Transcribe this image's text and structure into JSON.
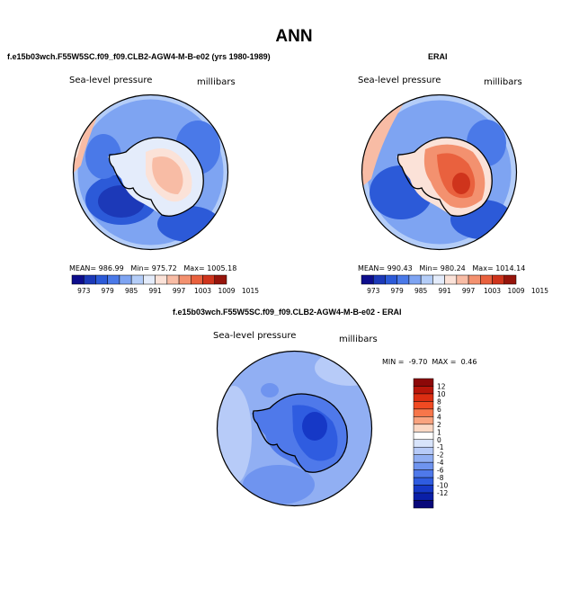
{
  "page_title": "ANN",
  "panels": {
    "model": {
      "title": "f.e15b03wch.F55W5SC.f09_f09.CLB2-AGW4-M-B-e02 (yrs 1980-1989)",
      "variable": "Sea-level pressure",
      "units": "millibars",
      "stats": {
        "mean_label": "MEAN=",
        "mean": "986.99",
        "min_label": "Min=",
        "min": "975.72",
        "max_label": "Max=",
        "max": "1005.18"
      }
    },
    "obs": {
      "title": "ERAI",
      "variable": "Sea-level pressure",
      "units": "millibars",
      "stats": {
        "mean_label": "MEAN=",
        "mean": "990.43",
        "min_label": "Min=",
        "min": "980.24",
        "max_label": "Max=",
        "max": "1014.14"
      }
    },
    "diff": {
      "title": "f.e15b03wch.F55W5SC.f09_f09.CLB2-AGW4-M-B-e02 - ERAI",
      "variable": "Sea-level pressure",
      "units": "millibars",
      "stats": {
        "min_label": "MIN =",
        "min": "-9.70",
        "max_label": "MAX =",
        "max": "0.46"
      }
    }
  },
  "colors": {
    "abs_scale": [
      "#0d0d8c",
      "#1c39b8",
      "#2c5ad8",
      "#4a79e8",
      "#7ea4f2",
      "#b4cdf8",
      "#e4ecfb",
      "#fbe2d8",
      "#f8bca5",
      "#f3916f",
      "#e9613e",
      "#cf341c",
      "#96140b"
    ],
    "diff_scale": [
      "#8c0808",
      "#b8160a",
      "#dc2e12",
      "#f04a22",
      "#f7764a",
      "#f9a37f",
      "#fbd8c4",
      "#ffffff",
      "#d8e4fb",
      "#b7cbf8",
      "#91aff3",
      "#6f94ef",
      "#4f79ea",
      "#2f5ce0",
      "#1638c6",
      "#0a1fa8",
      "#08087a"
    ]
  },
  "chart_data": [
    {
      "type": "contour-map",
      "projection": "south polar stereographic",
      "title": "f.e15b03wch.F55W5SC.f09_f09.CLB2-AGW4-M-B-e02 (yrs 1980-1989)",
      "field": "Sea-level pressure",
      "units": "millibars",
      "mean": 986.99,
      "min": 975.72,
      "max": 1005.18,
      "colorbar_levels": [
        "973",
        "979",
        "985",
        "991",
        "997",
        "1003",
        "1009",
        "1015"
      ]
    },
    {
      "type": "contour-map",
      "projection": "south polar stereographic",
      "title": "ERAI",
      "field": "Sea-level pressure",
      "units": "millibars",
      "mean": 990.43,
      "min": 980.24,
      "max": 1014.14,
      "colorbar_levels": [
        "973",
        "979",
        "985",
        "991",
        "997",
        "1003",
        "1009",
        "1015"
      ]
    },
    {
      "type": "contour-map",
      "projection": "south polar stereographic",
      "title": "f.e15b03wch.F55W5SC.f09_f09.CLB2-AGW4-M-B-e02 - ERAI",
      "field": "Sea-level pressure",
      "units": "millibars",
      "min": -9.7,
      "max": 0.46,
      "colorbar_levels": [
        "12",
        "10",
        "8",
        "6",
        "4",
        "2",
        "1",
        "0",
        "-1",
        "-2",
        "-4",
        "-6",
        "-8",
        "-10",
        "-12"
      ]
    }
  ]
}
